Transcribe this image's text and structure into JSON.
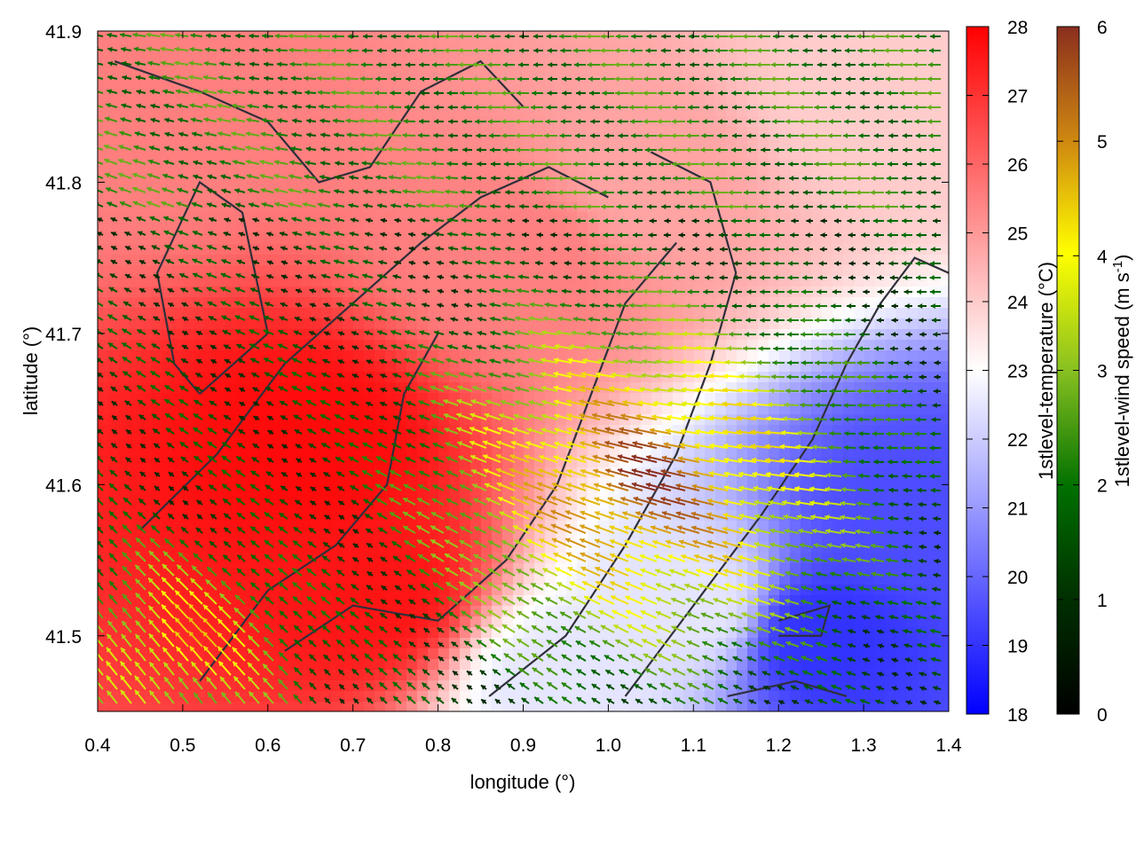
{
  "chart_data": {
    "type": "heatmap",
    "overlay": "wind-vector-field",
    "xlabel": "longitude (°)",
    "ylabel": "latitude (°)",
    "xlim": [
      0.4,
      1.4
    ],
    "ylim": [
      41.45,
      41.9
    ],
    "x_ticks": [
      "0.4",
      "0.5",
      "0.6",
      "0.7",
      "0.8",
      "0.9",
      "1.0",
      "1.1",
      "1.2",
      "1.3",
      "1.4"
    ],
    "x_tick_values": [
      0.4,
      0.5,
      0.6,
      0.7,
      0.8,
      0.9,
      1.0,
      1.1,
      1.2,
      1.3,
      1.4
    ],
    "y_ticks": [
      "41.5",
      "41.6",
      "41.7",
      "41.8",
      "41.9"
    ],
    "y_tick_values": [
      41.5,
      41.6,
      41.7,
      41.8,
      41.9
    ],
    "temperature_colorbar": {
      "label": "1stlevel-temperature (°C)",
      "range": [
        18,
        28
      ],
      "ticks": [
        "18",
        "19",
        "20",
        "21",
        "22",
        "23",
        "24",
        "25",
        "26",
        "27",
        "28"
      ],
      "tick_values": [
        18,
        19,
        20,
        21,
        22,
        23,
        24,
        25,
        26,
        27,
        28
      ],
      "colors": [
        "#0000ff",
        "#ffffff",
        "#ff0000"
      ]
    },
    "wind_colorbar": {
      "label_main": "1stlevel-wind speed (m s",
      "label_sup": "-1",
      "label_end": ")",
      "range": [
        0,
        6
      ],
      "ticks": [
        "0",
        "1",
        "2",
        "3",
        "4",
        "5",
        "6"
      ],
      "tick_values": [
        0,
        1,
        2,
        3,
        4,
        5,
        6
      ],
      "colors": [
        "#000000",
        "#006400",
        "#9acd32",
        "#ffff00",
        "#d4a017",
        "#a0522d",
        "#8b2e1e"
      ]
    },
    "temperature_field_estimates": [
      {
        "lon": 0.45,
        "lat": 41.85,
        "t": 25.5
      },
      {
        "lon": 0.65,
        "lat": 41.62,
        "t": 27.8
      },
      {
        "lon": 0.72,
        "lat": 41.53,
        "t": 27.6
      },
      {
        "lon": 0.9,
        "lat": 41.75,
        "t": 25.5
      },
      {
        "lon": 1.05,
        "lat": 41.8,
        "t": 24.8
      },
      {
        "lon": 1.3,
        "lat": 41.85,
        "t": 24.0
      },
      {
        "lon": 1.25,
        "lat": 41.5,
        "t": 19.0
      },
      {
        "lon": 1.35,
        "lat": 41.58,
        "t": 19.5
      },
      {
        "lon": 1.1,
        "lat": 41.52,
        "t": 22.5
      },
      {
        "lon": 0.95,
        "lat": 41.47,
        "t": 22.5
      }
    ],
    "wind_field_estimates": {
      "dominant_direction": "westward (from east), turning north-westward in south-east",
      "max_speed_region_lon_lat": [
        1.05,
        41.6
      ],
      "max_speed": 6
    }
  }
}
